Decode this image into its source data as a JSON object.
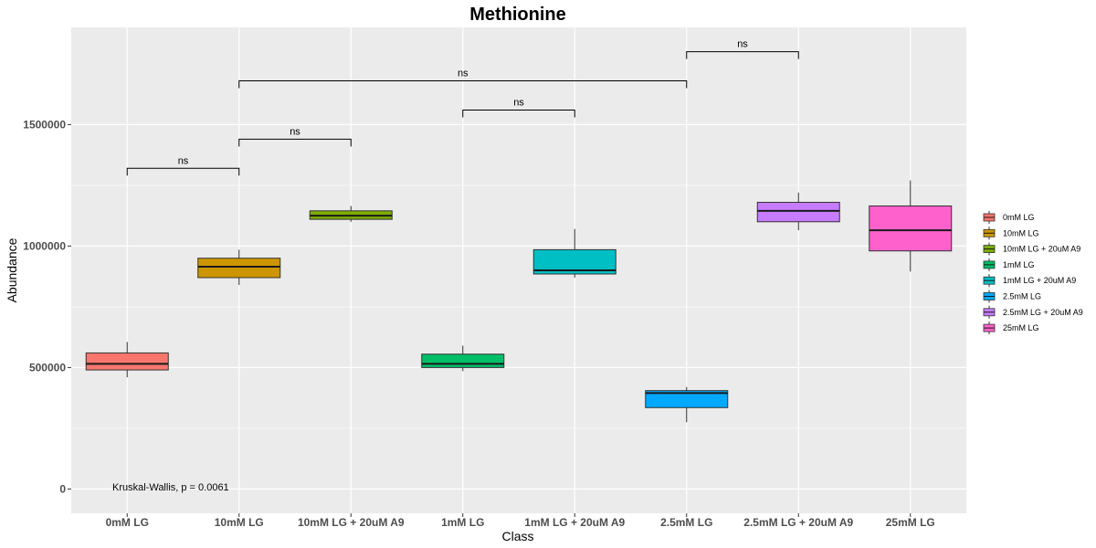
{
  "chart_data": {
    "type": "box",
    "title": "Methionine",
    "xlabel": "Class",
    "ylabel": "Abundance",
    "ylim": [
      -100000,
      1900000
    ],
    "yticks": [
      0,
      500000,
      1000000,
      1500000
    ],
    "ytick_labels": [
      "0",
      "500000",
      "1000000",
      "1500000"
    ],
    "grid": true,
    "legend_position": "right",
    "categories": [
      "0mM LG",
      "10mM LG",
      "10mM LG + 20uM A9",
      "1mM LG",
      "1mM LG + 20uM A9",
      "2.5mM LG",
      "2.5mM LG + 20uM A9",
      "25mM LG"
    ],
    "boxes": [
      {
        "category": "0mM LG",
        "color": "#F8766D",
        "min": 460000,
        "q1": 490000,
        "median": 515000,
        "q3": 560000,
        "max": 605000
      },
      {
        "category": "10mM LG",
        "color": "#CD9600",
        "min": 840000,
        "q1": 870000,
        "median": 915000,
        "q3": 950000,
        "max": 985000
      },
      {
        "category": "10mM LG + 20uM A9",
        "color": "#7CAE00",
        "min": 1100000,
        "q1": 1110000,
        "median": 1125000,
        "q3": 1145000,
        "max": 1165000
      },
      {
        "category": "1mM LG",
        "color": "#00BE67",
        "min": 485000,
        "q1": 500000,
        "median": 515000,
        "q3": 555000,
        "max": 590000
      },
      {
        "category": "1mM LG + 20uM A9",
        "color": "#00BFC4",
        "min": 870000,
        "q1": 885000,
        "median": 900000,
        "q3": 985000,
        "max": 1070000
      },
      {
        "category": "2.5mM LG",
        "color": "#00A9FF",
        "min": 275000,
        "q1": 335000,
        "median": 395000,
        "q3": 405000,
        "max": 420000
      },
      {
        "category": "2.5mM LG + 20uM A9",
        "color": "#C77CFF",
        "min": 1065000,
        "q1": 1100000,
        "median": 1145000,
        "q3": 1180000,
        "max": 1220000
      },
      {
        "category": "25mM LG",
        "color": "#FF61CC",
        "min": 895000,
        "q1": 980000,
        "median": 1065000,
        "q3": 1165000,
        "max": 1270000
      }
    ],
    "comparisons": [
      {
        "from": "0mM LG",
        "to": "10mM LG",
        "label": "ns",
        "y": 1320000
      },
      {
        "from": "10mM LG",
        "to": "10mM LG + 20uM A9",
        "label": "ns",
        "y": 1440000
      },
      {
        "from": "1mM LG",
        "to": "1mM LG + 20uM A9",
        "label": "ns",
        "y": 1560000
      },
      {
        "from": "10mM LG",
        "to": "2.5mM LG",
        "label": "ns",
        "y": 1680000
      },
      {
        "from": "2.5mM LG",
        "to": "2.5mM LG + 20uM A9",
        "label": "ns",
        "y": 1800000
      }
    ],
    "annotation": "Kruskal-Wallis, p = 0.0061",
    "legend": [
      {
        "label": "0mM LG",
        "color": "#F8766D"
      },
      {
        "label": "10mM LG",
        "color": "#CD9600"
      },
      {
        "label": "10mM LG + 20uM A9",
        "color": "#7CAE00"
      },
      {
        "label": "1mM LG",
        "color": "#00BE67"
      },
      {
        "label": "1mM LG + 20uM A9",
        "color": "#00BFC4"
      },
      {
        "label": "2.5mM LG",
        "color": "#00A9FF"
      },
      {
        "label": "2.5mM LG + 20uM A9",
        "color": "#C77CFF"
      },
      {
        "label": "25mM LG",
        "color": "#FF61CC"
      }
    ],
    "panel_background": "#EBEBEB",
    "grid_color": "#FFFFFF"
  }
}
